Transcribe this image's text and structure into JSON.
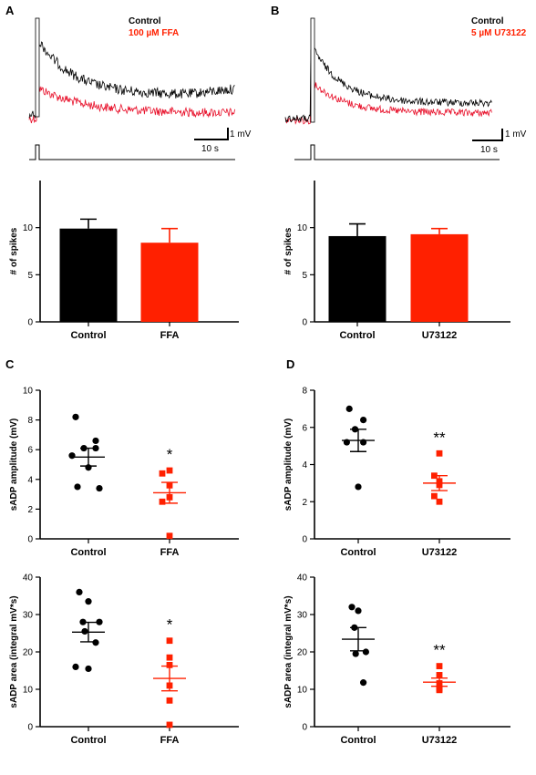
{
  "colors": {
    "control": "#000000",
    "treatment": "#ff2000",
    "trace_treatment": "#e8102a"
  },
  "panels": {
    "A": {
      "label": "A",
      "legend": [
        "Control",
        "100 µM FFA"
      ],
      "scalebar": {
        "vertical": "1 mV",
        "horizontal": "10 s"
      }
    },
    "B": {
      "label": "B",
      "legend": [
        "Control",
        "5 µM U73122"
      ],
      "scalebar": {
        "vertical": "1 mV",
        "horizontal": "10 s"
      }
    },
    "C": {
      "label": "C"
    },
    "D": {
      "label": "D"
    }
  },
  "chart_data": [
    {
      "id": "spikes-ffa",
      "type": "bar",
      "categories": [
        "Control",
        "FFA"
      ],
      "values": [
        9.9,
        8.4
      ],
      "errors": [
        1.0,
        1.5
      ],
      "ylabel": "# of spikes",
      "ylim": [
        0,
        15
      ],
      "yticks": [
        0,
        5,
        10
      ]
    },
    {
      "id": "spikes-u73122",
      "type": "bar",
      "categories": [
        "Control",
        "U73122"
      ],
      "values": [
        9.1,
        9.3
      ],
      "errors": [
        1.3,
        0.6
      ],
      "ylabel": "# of spikes",
      "ylim": [
        0,
        15
      ],
      "yticks": [
        0,
        5,
        10
      ]
    },
    {
      "id": "amp-ffa",
      "type": "scatter",
      "categories": [
        "Control",
        "FFA"
      ],
      "ylabel": "sADP amplitude (mV)",
      "ylim": [
        0,
        10
      ],
      "yticks": [
        0,
        2,
        4,
        6,
        8,
        10
      ],
      "series": [
        {
          "points": [
            8.2,
            6.6,
            6.1,
            6.1,
            5.6,
            4.8,
            3.5,
            3.4
          ],
          "mean": 5.5,
          "sem": 0.6
        },
        {
          "points": [
            4.6,
            4.4,
            3.6,
            2.8,
            2.5,
            0.2
          ],
          "mean": 3.1,
          "sem": 0.7,
          "significance": "*"
        }
      ]
    },
    {
      "id": "amp-u73122",
      "type": "scatter",
      "categories": [
        "Control",
        "U73122"
      ],
      "ylabel": "sADP amplitude (mV)",
      "ylim": [
        0,
        8
      ],
      "yticks": [
        0,
        2,
        4,
        6,
        8
      ],
      "series": [
        {
          "points": [
            7.0,
            6.4,
            5.9,
            5.2,
            5.2,
            2.8
          ],
          "mean": 5.3,
          "sem": 0.6
        },
        {
          "points": [
            4.6,
            3.4,
            3.1,
            2.9,
            2.3,
            2.0
          ],
          "mean": 3.0,
          "sem": 0.4,
          "significance": "**"
        }
      ]
    },
    {
      "id": "area-ffa",
      "type": "scatter",
      "categories": [
        "Control",
        "FFA"
      ],
      "ylabel": "sADP area (integral mV*s)",
      "ylim": [
        0,
        40
      ],
      "yticks": [
        0,
        10,
        20,
        30,
        40
      ],
      "series": [
        {
          "points": [
            36,
            33.5,
            28,
            28,
            25.5,
            22.5,
            16,
            15.5
          ],
          "mean": 25.3,
          "sem": 2.6
        },
        {
          "points": [
            23,
            18.5,
            16.5,
            11,
            7,
            0.5
          ],
          "mean": 12.9,
          "sem": 3.3,
          "significance": "*"
        }
      ]
    },
    {
      "id": "area-u73122",
      "type": "scatter",
      "categories": [
        "Control",
        "U73122"
      ],
      "ylabel": "sADP area (integral mV*s)",
      "ylim": [
        0,
        40
      ],
      "yticks": [
        0,
        10,
        20,
        30,
        40
      ],
      "series": [
        {
          "points": [
            32,
            31,
            26.5,
            20,
            19.5,
            11.8
          ],
          "mean": 23.4,
          "sem": 3.1
        },
        {
          "points": [
            16.2,
            13.8,
            11.6,
            10.2,
            10.2,
            9.8
          ],
          "mean": 11.9,
          "sem": 1.1,
          "significance": "**"
        }
      ]
    }
  ]
}
